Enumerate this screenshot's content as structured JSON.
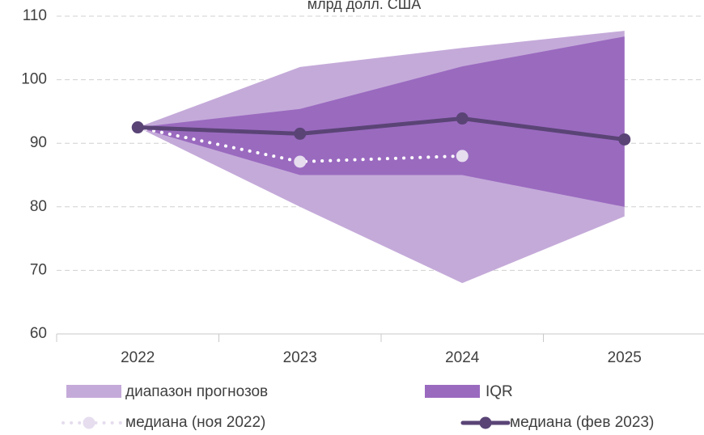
{
  "chart_data": {
    "type": "fan",
    "title": "млрд долл. США",
    "categories": [
      "2022",
      "2023",
      "2024",
      "2025"
    ],
    "ylim": [
      60,
      110
    ],
    "yticks": [
      60,
      70,
      80,
      90,
      100,
      110
    ],
    "grid": true,
    "bands": [
      {
        "name": "диапазон прогнозов",
        "color": "#c4aad9",
        "low": [
          92.5,
          80,
          68,
          78.5
        ],
        "high": [
          92.5,
          102,
          105,
          107.7
        ]
      },
      {
        "name": "IQR",
        "color": "#9a6abf",
        "low": [
          92.5,
          85,
          85,
          80
        ],
        "high": [
          92.5,
          95.4,
          102.1,
          106.8
        ]
      }
    ],
    "series": [
      {
        "name": "медиана (ноя 2022)",
        "color": "#ffffff",
        "marker_color": "#e6ddef",
        "style": "dotted",
        "values": [
          92.5,
          87.1,
          88,
          null
        ]
      },
      {
        "name": "медиана (фев 2023)",
        "color": "#5a4476",
        "marker_color": "#5a4476",
        "style": "solid",
        "values": [
          92.5,
          91.5,
          93.9,
          90.6
        ]
      }
    ]
  }
}
